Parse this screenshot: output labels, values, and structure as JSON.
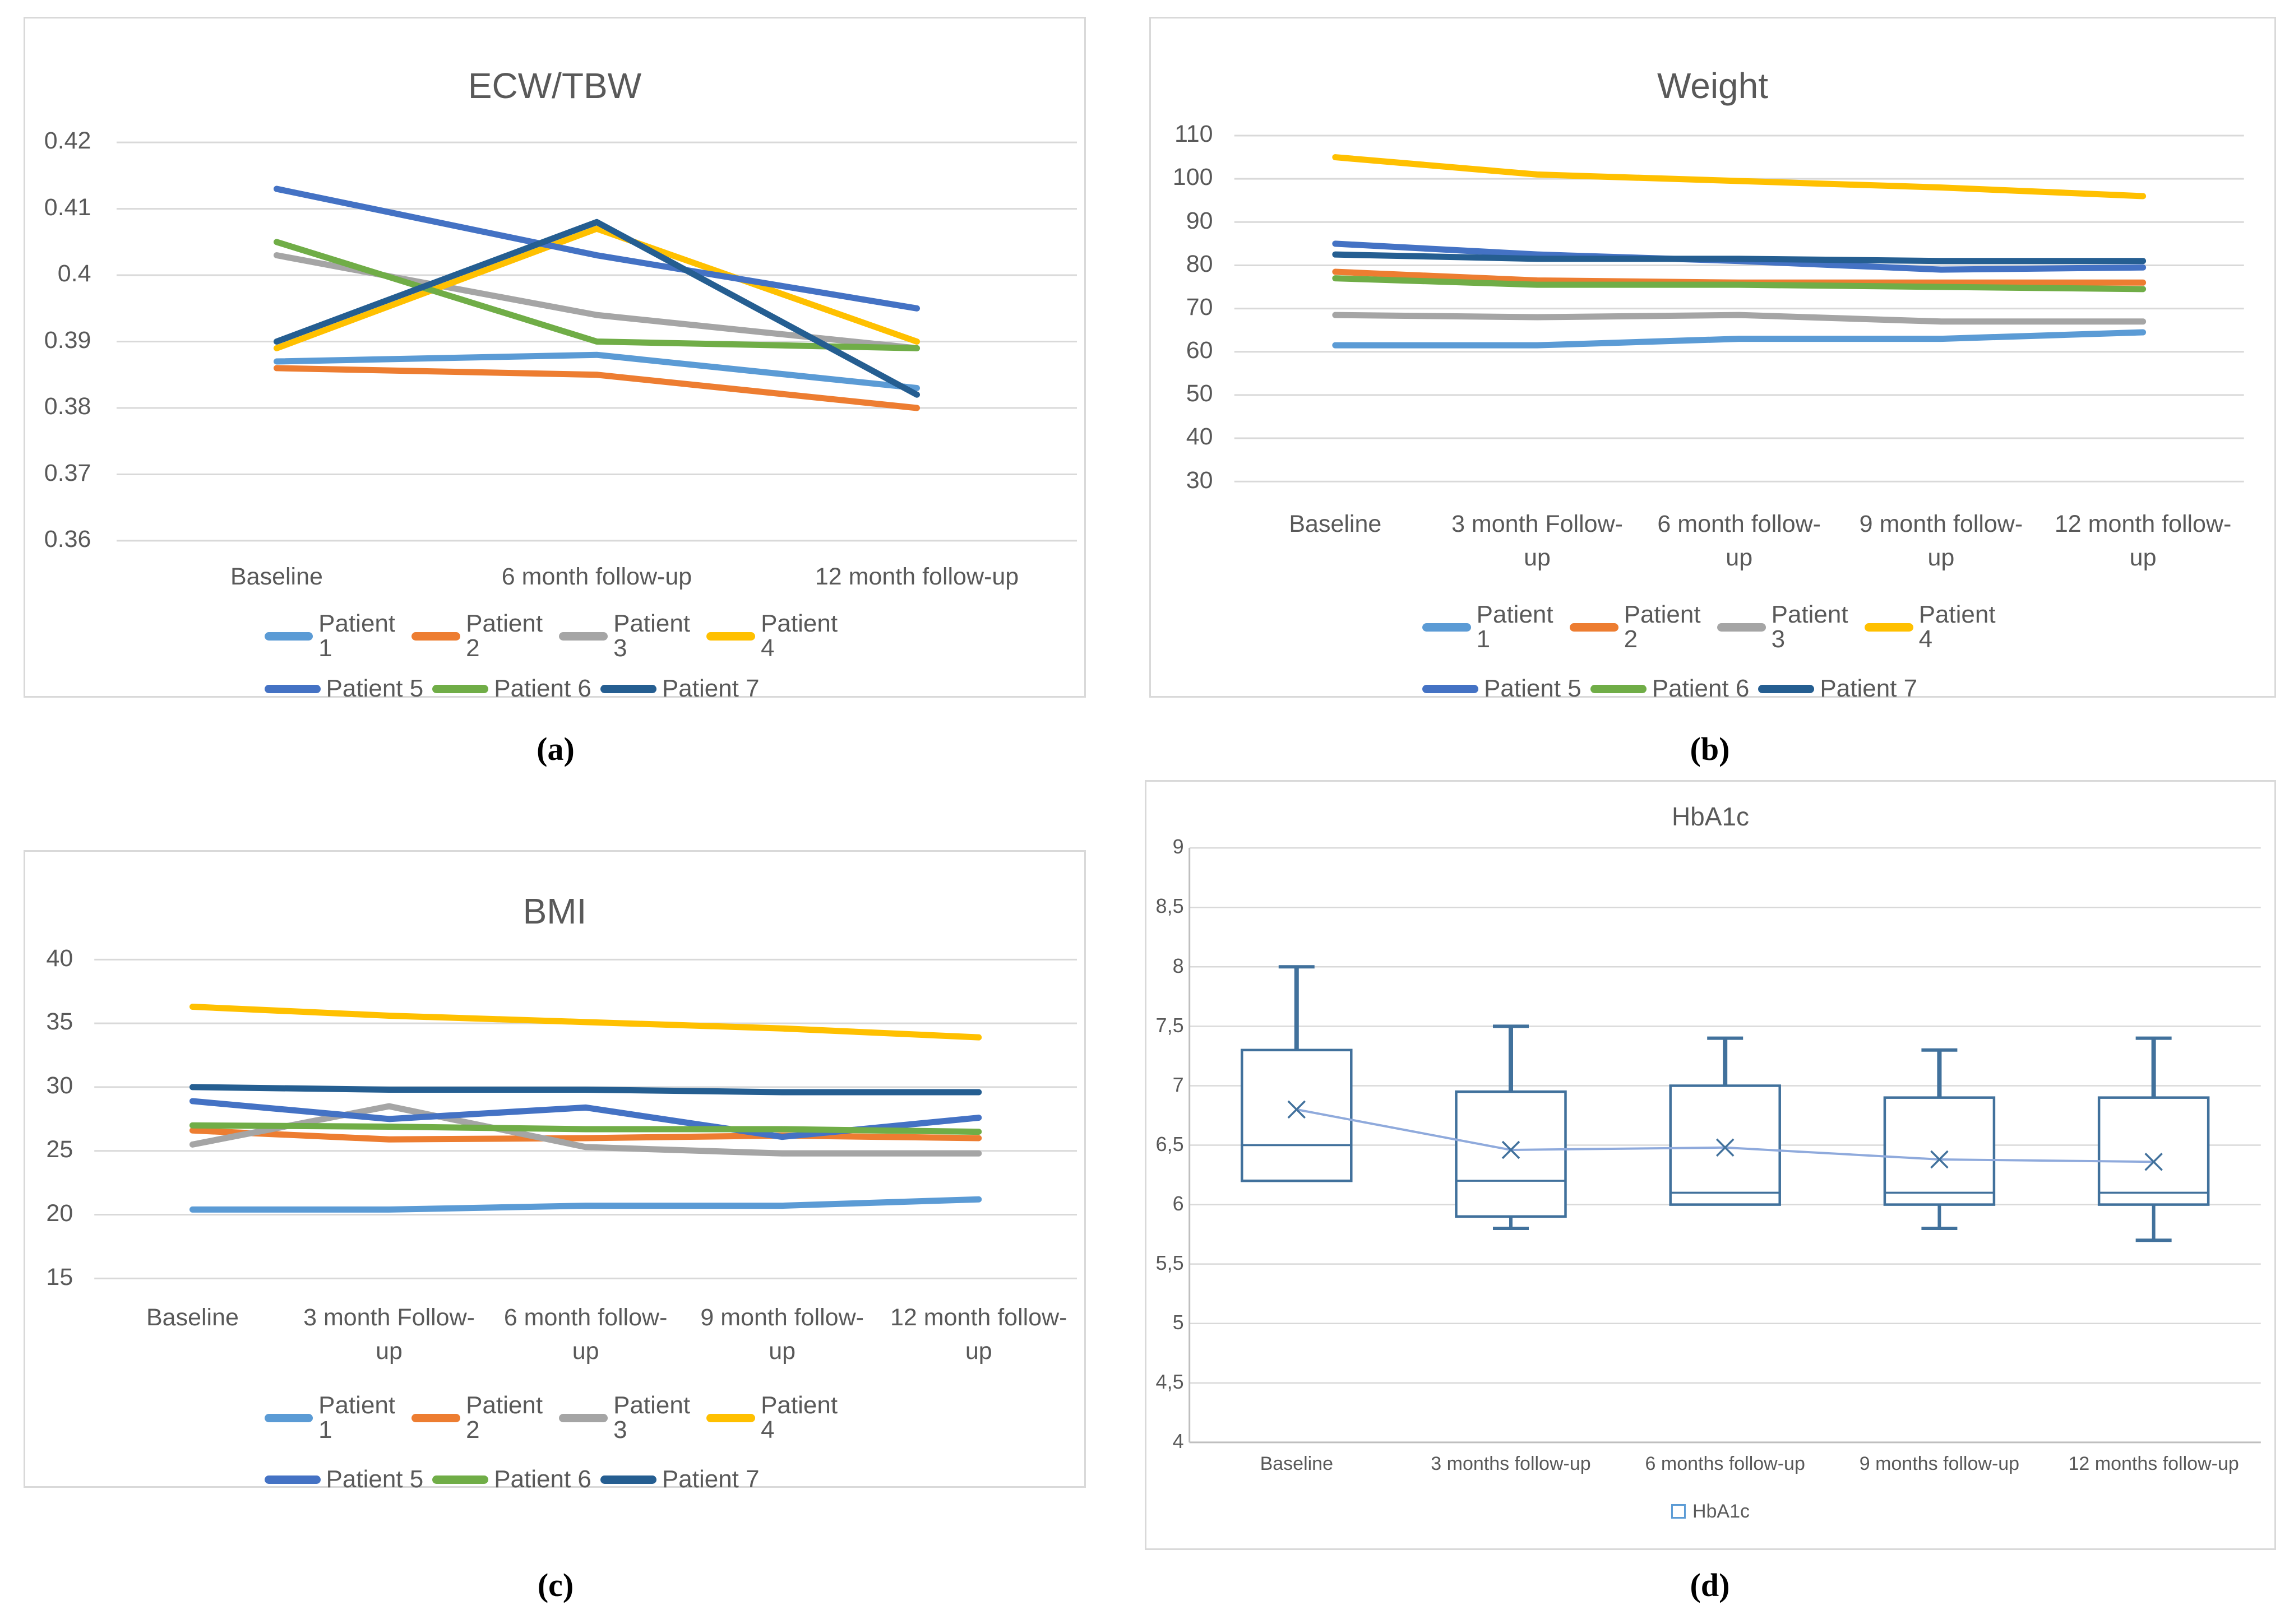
{
  "captions": {
    "a": "(a)",
    "b": "(b)",
    "c": "(c)",
    "d": "(d)"
  },
  "colors": {
    "background": "#FFFFFF",
    "panel_border": "#D9D9D9",
    "gridline": "#D9D9D9",
    "axis_line": "#BFBFBF",
    "text": "#595959",
    "caption_text": "#000000",
    "box_stroke": "#41719C",
    "mean_line": "#8FAADC",
    "legend_square": "#5B9BD5"
  },
  "chart_data": [
    {
      "id": "ecw-tbw",
      "type": "line",
      "title": "ECW/TBW",
      "xlabel": "",
      "ylabel": "",
      "ylim": [
        0.36,
        0.42
      ],
      "grid": true,
      "legend_position": "bottom",
      "y_ticks": [
        {
          "v": 0.42,
          "label": "0.42"
        },
        {
          "v": 0.41,
          "label": "0.41"
        },
        {
          "v": 0.4,
          "label": "0.4"
        },
        {
          "v": 0.39,
          "label": "0.39"
        },
        {
          "v": 0.38,
          "label": "0.38"
        },
        {
          "v": 0.37,
          "label": "0.37"
        },
        {
          "v": 0.36,
          "label": "0.36"
        }
      ],
      "categories": [
        [
          "Baseline"
        ],
        [
          "6 month follow-up"
        ],
        [
          "12 month follow-up"
        ]
      ],
      "series": [
        {
          "name": "Patient 1",
          "color": "#5B9BD5",
          "values": [
            0.387,
            0.388,
            0.383
          ]
        },
        {
          "name": "Patient 2",
          "color": "#ED7D31",
          "values": [
            0.386,
            0.385,
            0.38
          ]
        },
        {
          "name": "Patient 3",
          "color": "#A5A5A5",
          "values": [
            0.403,
            0.394,
            0.389
          ]
        },
        {
          "name": "Patient 4",
          "color": "#FFC000",
          "values": [
            0.389,
            0.407,
            0.39
          ]
        },
        {
          "name": "Patient 5",
          "color": "#4472C4",
          "values": [
            0.413,
            0.403,
            0.395
          ]
        },
        {
          "name": "Patient 6",
          "color": "#70AD47",
          "values": [
            0.405,
            0.39,
            0.389
          ]
        },
        {
          "name": "Patient 7",
          "color": "#255E91",
          "values": [
            0.39,
            0.408,
            0.382
          ]
        }
      ],
      "legend_rows": [
        [
          "Patient 1",
          "Patient 2",
          "Patient 3",
          "Patient 4"
        ],
        [
          "Patient 5",
          "Patient 6",
          "Patient 7"
        ]
      ]
    },
    {
      "id": "weight",
      "type": "line",
      "title": "Weight",
      "xlabel": "",
      "ylabel": "",
      "ylim": [
        30,
        110
      ],
      "grid": true,
      "legend_position": "bottom",
      "y_ticks": [
        {
          "v": 110,
          "label": "110"
        },
        {
          "v": 100,
          "label": "100"
        },
        {
          "v": 90,
          "label": "90"
        },
        {
          "v": 80,
          "label": "80"
        },
        {
          "v": 70,
          "label": "70"
        },
        {
          "v": 60,
          "label": "60"
        },
        {
          "v": 50,
          "label": "50"
        },
        {
          "v": 40,
          "label": "40"
        },
        {
          "v": 30,
          "label": "30"
        }
      ],
      "categories": [
        [
          "Baseline"
        ],
        [
          "3 month Follow-",
          "up"
        ],
        [
          "6 month follow-",
          "up"
        ],
        [
          "9 month follow-",
          "up"
        ],
        [
          "12 month follow-",
          "up"
        ]
      ],
      "series": [
        {
          "name": "Patient 1",
          "color": "#5B9BD5",
          "values": [
            61.5,
            61.5,
            63,
            63,
            64.5
          ]
        },
        {
          "name": "Patient 2",
          "color": "#ED7D31",
          "values": [
            78.5,
            76.5,
            76,
            76,
            76
          ]
        },
        {
          "name": "Patient 3",
          "color": "#A5A5A5",
          "values": [
            68.5,
            68,
            68.5,
            67,
            67
          ]
        },
        {
          "name": "Patient 4",
          "color": "#FFC000",
          "values": [
            105,
            101,
            99.5,
            98,
            96
          ]
        },
        {
          "name": "Patient 5",
          "color": "#4472C4",
          "values": [
            85,
            82.5,
            81,
            79,
            79.5
          ]
        },
        {
          "name": "Patient 6",
          "color": "#70AD47",
          "values": [
            77,
            75.5,
            75.5,
            75,
            74.5
          ]
        },
        {
          "name": "Patient 7",
          "color": "#255E91",
          "values": [
            82.5,
            81.5,
            81.5,
            81,
            81
          ]
        }
      ],
      "legend_rows": [
        [
          "Patient 1",
          "Patient 2",
          "Patient 3",
          "Patient 4"
        ],
        [
          "Patient 5",
          "Patient 6",
          "Patient 7"
        ]
      ]
    },
    {
      "id": "bmi",
      "type": "line",
      "title": "BMI",
      "xlabel": "",
      "ylabel": "",
      "ylim": [
        15,
        40
      ],
      "grid": true,
      "legend_position": "bottom",
      "y_ticks": [
        {
          "v": 40,
          "label": "40"
        },
        {
          "v": 35,
          "label": "35"
        },
        {
          "v": 30,
          "label": "30"
        },
        {
          "v": 25,
          "label": "25"
        },
        {
          "v": 20,
          "label": "20"
        },
        {
          "v": 15,
          "label": "15"
        }
      ],
      "categories": [
        [
          "Baseline"
        ],
        [
          "3 month Follow-",
          "up"
        ],
        [
          "6 month follow-",
          "up"
        ],
        [
          "9 month follow-",
          "up"
        ],
        [
          "12 month follow-",
          "up"
        ]
      ],
      "series": [
        {
          "name": "Patient 1",
          "color": "#5B9BD5",
          "values": [
            20.4,
            20.4,
            20.7,
            20.7,
            21.2
          ]
        },
        {
          "name": "Patient 2",
          "color": "#ED7D31",
          "values": [
            26.6,
            25.9,
            26,
            26.2,
            26
          ]
        },
        {
          "name": "Patient 3",
          "color": "#A5A5A5",
          "values": [
            25.5,
            28.5,
            25.3,
            24.8,
            24.8
          ]
        },
        {
          "name": "Patient 4",
          "color": "#FFC000",
          "values": [
            36.3,
            35.6,
            35.1,
            34.6,
            33.9
          ]
        },
        {
          "name": "Patient 5",
          "color": "#4472C4",
          "values": [
            28.9,
            27.5,
            28.4,
            26.1,
            27.6
          ]
        },
        {
          "name": "Patient 6",
          "color": "#70AD47",
          "values": [
            27,
            26.9,
            26.7,
            26.7,
            26.5
          ]
        },
        {
          "name": "Patient 7",
          "color": "#255E91",
          "values": [
            30,
            29.8,
            29.8,
            29.6,
            29.6
          ]
        }
      ],
      "legend_rows": [
        [
          "Patient 1",
          "Patient 2",
          "Patient 3",
          "Patient 4"
        ],
        [
          "Patient 5",
          "Patient 6",
          "Patient 7"
        ]
      ]
    },
    {
      "id": "hba1c",
      "type": "box",
      "title": "HbA1c",
      "xlabel": "",
      "ylabel": "",
      "ylim": [
        4,
        9
      ],
      "grid": true,
      "legend_position": "bottom",
      "y_ticks": [
        {
          "v": 9,
          "label": "9"
        },
        {
          "v": 8.5,
          "label": "8,5"
        },
        {
          "v": 8,
          "label": "8"
        },
        {
          "v": 7.5,
          "label": "7,5"
        },
        {
          "v": 7,
          "label": "7"
        },
        {
          "v": 6.5,
          "label": "6,5"
        },
        {
          "v": 6,
          "label": "6"
        },
        {
          "v": 5.5,
          "label": "5,5"
        },
        {
          "v": 5,
          "label": "5"
        },
        {
          "v": 4.5,
          "label": "4,5"
        },
        {
          "v": 4,
          "label": "4"
        }
      ],
      "categories": [
        [
          "Baseline"
        ],
        [
          "3 months follow-up"
        ],
        [
          "6 months follow-up"
        ],
        [
          "9 months follow-up"
        ],
        [
          "12 months follow-up"
        ]
      ],
      "boxes": [
        {
          "min": null,
          "q1": 6.2,
          "median": 6.5,
          "q3": 7.3,
          "max": 8.0,
          "mean": 6.8
        },
        {
          "min": 5.8,
          "q1": 5.9,
          "median": 6.2,
          "q3": 6.95,
          "max": 7.5,
          "mean": 6.46
        },
        {
          "min": null,
          "q1": 6.0,
          "median": 6.1,
          "q3": 7.0,
          "max": 7.4,
          "mean": 6.48
        },
        {
          "min": 5.8,
          "q1": 6.0,
          "median": 6.1,
          "q3": 6.9,
          "max": 7.3,
          "mean": 6.38
        },
        {
          "min": 5.7,
          "q1": 6.0,
          "median": 6.1,
          "q3": 6.9,
          "max": 7.4,
          "mean": 6.36
        }
      ],
      "legend": {
        "label": "HbA1c"
      }
    }
  ]
}
